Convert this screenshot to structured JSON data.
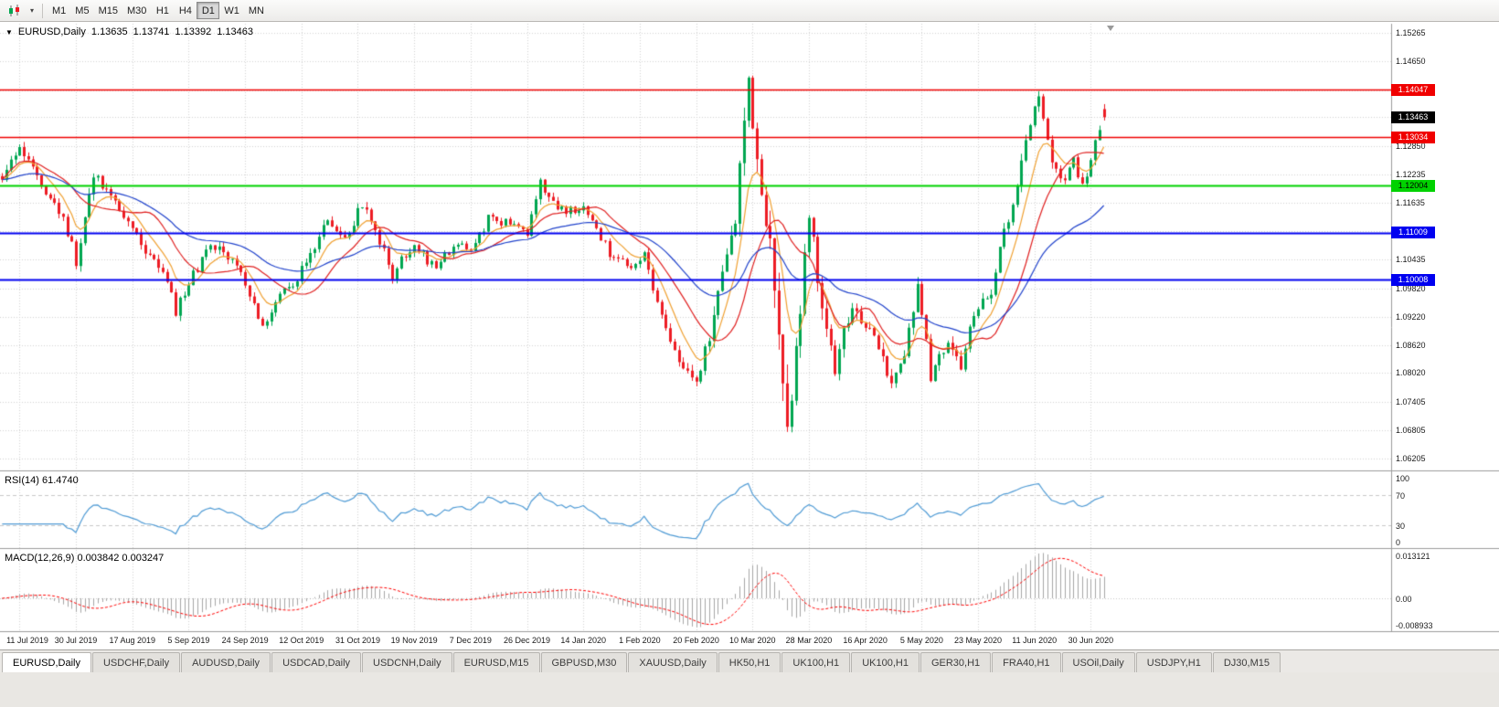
{
  "toolbar": {
    "dropdown_caret": "▾",
    "timeframes": [
      {
        "label": "M1",
        "active": false
      },
      {
        "label": "M5",
        "active": false
      },
      {
        "label": "M15",
        "active": false
      },
      {
        "label": "M30",
        "active": false
      },
      {
        "label": "H1",
        "active": false
      },
      {
        "label": "H4",
        "active": false
      },
      {
        "label": "D1",
        "active": true
      },
      {
        "label": "W1",
        "active": false
      },
      {
        "label": "MN",
        "active": false
      }
    ]
  },
  "chart": {
    "legend": {
      "symbol": "EURUSD,Daily",
      "open": "1.13635",
      "high": "1.13741",
      "low": "1.13392",
      "close": "1.13463"
    },
    "price_scale": {
      "tick_labels": [
        "1.15265",
        "1.14650",
        "1.12850",
        "1.12235",
        "1.11635",
        "1.10435",
        "1.09820",
        "1.09220",
        "1.08620",
        "1.08020",
        "1.07405",
        "1.06805",
        "1.06205"
      ],
      "gridline_prices": [
        1.15265,
        1.1465,
        1.1404,
        1.1346,
        1.1285,
        1.12235,
        1.11635,
        1.11035,
        1.10435,
        1.0982,
        1.0922,
        1.0862,
        1.0802,
        1.07405,
        1.06805,
        1.06205
      ],
      "current_price_badge": {
        "label": "1.13463",
        "bg": "#000000",
        "fg": "#ffffff"
      }
    },
    "levels": [
      {
        "price": 1.14047,
        "label": "1.14047",
        "color": "#f00000",
        "text": "#ffffff"
      },
      {
        "price": 1.13034,
        "label": "1.13034",
        "color": "#f00000",
        "text": "#ffffff"
      },
      {
        "price": 1.12004,
        "label": "1.12004",
        "color": "#00d200",
        "text": "#000000"
      },
      {
        "price": 1.11009,
        "label": "1.11009",
        "color": "#0000f0",
        "text": "#ffffff"
      },
      {
        "price": 1.10008,
        "label": "1.10008",
        "color": "#0000f0",
        "text": "#ffffff"
      }
    ]
  },
  "indicators": {
    "rsi": {
      "title": "RSI(14) 61.4740",
      "scale_labels": [
        "100",
        "70",
        "30",
        "0"
      ],
      "levels": [
        70,
        30
      ],
      "line_color": "#4f9bd5"
    },
    "macd": {
      "title": "MACD(12,26,9) 0.003842 0.003247",
      "scale_labels": [
        "0.013121",
        "0.00",
        "-0.008933"
      ],
      "range": [
        -0.008933,
        0.013121
      ],
      "hist_color": "#a6a6a6",
      "signal_color": "#ff0000"
    }
  },
  "time_axis": {
    "labels": [
      "11 Jul 2019",
      "30 Jul 2019",
      "17 Aug 2019",
      "5 Sep 2019",
      "24 Sep 2019",
      "12 Oct 2019",
      "31 Oct 2019",
      "19 Nov 2019",
      "7 Dec 2019",
      "26 Dec 2019",
      "14 Jan 2020",
      "1 Feb 2020",
      "20 Feb 2020",
      "10 Mar 2020",
      "28 Mar 2020",
      "16 Apr 2020",
      "5 May 2020",
      "23 May 2020",
      "11 Jun 2020",
      "30 Jun 2020"
    ]
  },
  "tabs": [
    {
      "label": "EURUSD,Daily",
      "active": true
    },
    {
      "label": "USDCHF,Daily",
      "active": false
    },
    {
      "label": "AUDUSD,Daily",
      "active": false
    },
    {
      "label": "USDCAD,Daily",
      "active": false
    },
    {
      "label": "USDCNH,Daily",
      "active": false
    },
    {
      "label": "EURUSD,M15",
      "active": false
    },
    {
      "label": "GBPUSD,M30",
      "active": false
    },
    {
      "label": "XAUUSD,Daily",
      "active": false
    },
    {
      "label": "HK50,H1",
      "active": false
    },
    {
      "label": "UK100,H1",
      "active": false
    },
    {
      "label": "UK100,H1",
      "active": false
    },
    {
      "label": "GER30,H1",
      "active": false
    },
    {
      "label": "FRA40,H1",
      "active": false
    },
    {
      "label": "USOil,Daily",
      "active": false
    },
    {
      "label": "USDJPY,H1",
      "active": false
    },
    {
      "label": "DJ30,M15",
      "active": false
    }
  ],
  "chart_data": {
    "type": "candlestick",
    "symbol": "EURUSD",
    "timeframe": "Daily",
    "title": "EURUSD,Daily",
    "ohlc_current": {
      "open": 1.13635,
      "high": 1.13741,
      "low": 1.13392,
      "close": 1.13463
    },
    "bars": 255,
    "y_range": [
      1.0595,
      1.1545
    ],
    "horizontal_levels": [
      1.14047,
      1.13034,
      1.12004,
      1.11009,
      1.10008
    ],
    "rsi_current": 61.474,
    "macd_current": 0.003842,
    "macd_signal_current": 0.003247,
    "price_path_anchors": [
      [
        0,
        1.1225,
        0.8
      ],
      [
        4,
        1.1272,
        0.8
      ],
      [
        9,
        1.1205,
        0.7
      ],
      [
        14,
        1.1128,
        0.7
      ],
      [
        17,
        1.1042,
        0.9
      ],
      [
        21,
        1.1218,
        1.0
      ],
      [
        26,
        1.1168,
        0.8
      ],
      [
        30,
        1.11,
        0.8
      ],
      [
        38,
        1.0992,
        0.8
      ],
      [
        40,
        1.0932,
        0.8
      ],
      [
        47,
        1.1068,
        0.8
      ],
      [
        51,
        1.1062,
        0.7
      ],
      [
        55,
        1.1018,
        0.7
      ],
      [
        60,
        1.0892,
        0.8
      ],
      [
        64,
        1.0965,
        0.8
      ],
      [
        70,
        1.1032,
        0.8
      ],
      [
        75,
        1.1128,
        0.8
      ],
      [
        79,
        1.1082,
        0.7
      ],
      [
        83,
        1.1162,
        0.8
      ],
      [
        90,
        1.1012,
        0.8
      ],
      [
        95,
        1.1078,
        0.7
      ],
      [
        100,
        1.1018,
        0.7
      ],
      [
        104,
        1.1078,
        0.7
      ],
      [
        108,
        1.1058,
        0.6
      ],
      [
        112,
        1.1132,
        0.7
      ],
      [
        117,
        1.112,
        0.6
      ],
      [
        121,
        1.1092,
        0.6
      ],
      [
        124,
        1.121,
        0.8
      ],
      [
        128,
        1.1152,
        0.7
      ],
      [
        134,
        1.1148,
        0.6
      ],
      [
        140,
        1.1058,
        0.7
      ],
      [
        145,
        1.1032,
        0.7
      ],
      [
        148,
        1.1058,
        0.7
      ],
      [
        151,
        1.0948,
        0.8
      ],
      [
        155,
        1.0842,
        0.8
      ],
      [
        160,
        1.0792,
        0.9
      ],
      [
        163,
        1.0882,
        1.2
      ],
      [
        166,
        1.1028,
        1.5
      ],
      [
        169,
        1.1138,
        1.8
      ],
      [
        171,
        1.135,
        2.0
      ],
      [
        172,
        1.1435,
        2.2
      ],
      [
        173,
        1.134,
        2.4
      ],
      [
        176,
        1.1108,
        2.6
      ],
      [
        178,
        1.0988,
        2.6
      ],
      [
        181,
        1.0705,
        2.8
      ],
      [
        182,
        1.0732,
        2.4
      ],
      [
        185,
        1.1032,
        2.2
      ],
      [
        186,
        1.1138,
        1.8
      ],
      [
        189,
        1.0922,
        1.8
      ],
      [
        192,
        1.0802,
        1.5
      ],
      [
        195,
        1.0928,
        1.4
      ],
      [
        199,
        1.0912,
        1.1
      ],
      [
        202,
        1.0862,
        1.1
      ],
      [
        205,
        1.0778,
        1.1
      ],
      [
        208,
        1.0832,
        1.1
      ],
      [
        211,
        1.0978,
        1.2
      ],
      [
        214,
        1.0798,
        1.2
      ],
      [
        218,
        1.0852,
        1.0
      ],
      [
        221,
        1.0822,
        0.9
      ],
      [
        225,
        1.0952,
        1.0
      ],
      [
        228,
        1.0982,
        0.9
      ],
      [
        232,
        1.1135,
        1.0
      ],
      [
        236,
        1.1288,
        1.0
      ],
      [
        239,
        1.1388,
        1.0
      ],
      [
        242,
        1.1258,
        1.0
      ],
      [
        245,
        1.1212,
        0.9
      ],
      [
        247,
        1.1268,
        0.9
      ],
      [
        249,
        1.1192,
        0.9
      ],
      [
        251,
        1.1248,
        0.8
      ],
      [
        253,
        1.133,
        0.8
      ],
      [
        254,
        1.13463,
        0.6
      ]
    ],
    "moving_averages": [
      {
        "name": "fast-ma",
        "period": 8,
        "type": "ema",
        "color": "#f0a030"
      },
      {
        "name": "medium-ma",
        "period": 16,
        "type": "sma",
        "color": "#e02020"
      },
      {
        "name": "slow-ma",
        "period": 40,
        "type": "ema",
        "color": "#2244cc"
      }
    ],
    "candle_up_color": "#00a651",
    "candle_down_color": "#ed1c24"
  }
}
